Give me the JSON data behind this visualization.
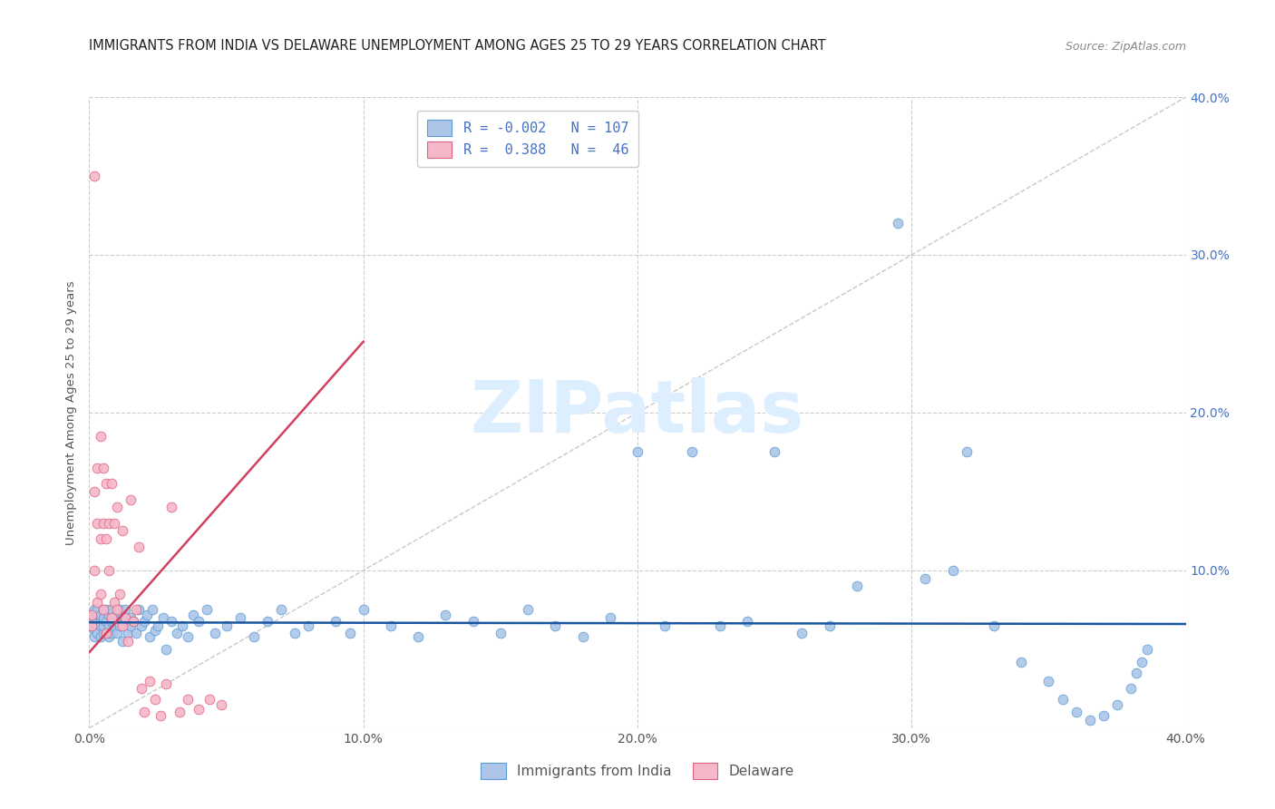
{
  "title": "IMMIGRANTS FROM INDIA VS DELAWARE UNEMPLOYMENT AMONG AGES 25 TO 29 YEARS CORRELATION CHART",
  "source": "Source: ZipAtlas.com",
  "ylabel": "Unemployment Among Ages 25 to 29 years",
  "xlim": [
    0.0,
    0.4
  ],
  "ylim": [
    0.0,
    0.4
  ],
  "xticks": [
    0.0,
    0.1,
    0.2,
    0.3,
    0.4
  ],
  "yticks": [
    0.0,
    0.1,
    0.2,
    0.3,
    0.4
  ],
  "xtick_labels": [
    "0.0%",
    "10.0%",
    "20.0%",
    "30.0%",
    "40.0%"
  ],
  "right_ytick_labels": [
    "",
    "10.0%",
    "20.0%",
    "30.0%",
    "40.0%"
  ],
  "blue_R": -0.002,
  "blue_N": 107,
  "pink_R": 0.388,
  "pink_N": 46,
  "blue_color": "#adc6e8",
  "pink_color": "#f5b8c8",
  "blue_edge": "#5b9bd5",
  "pink_edge": "#e06080",
  "blue_trend_color": "#1a56a0",
  "pink_trend_color": "#d04060",
  "diagonal_color": "#c8c8c8",
  "watermark_color": "#ddeeff",
  "legend_label_blue": "Immigrants from India",
  "legend_label_pink": "Delaware",
  "title_fontsize": 10.5,
  "axis_label_fontsize": 9.5,
  "tick_fontsize": 10,
  "blue_trend_y_at_0": 0.067,
  "blue_trend_y_at_40": 0.066,
  "pink_trend_x_start": 0.0,
  "pink_trend_y_start": 0.048,
  "pink_trend_x_end": 0.1,
  "pink_trend_y_end": 0.245,
  "blue_x": [
    0.001,
    0.001,
    0.001,
    0.002,
    0.002,
    0.002,
    0.002,
    0.003,
    0.003,
    0.003,
    0.003,
    0.003,
    0.004,
    0.004,
    0.004,
    0.004,
    0.005,
    0.005,
    0.005,
    0.005,
    0.005,
    0.006,
    0.006,
    0.006,
    0.007,
    0.007,
    0.007,
    0.008,
    0.008,
    0.008,
    0.009,
    0.009,
    0.01,
    0.01,
    0.011,
    0.011,
    0.012,
    0.012,
    0.013,
    0.013,
    0.014,
    0.015,
    0.015,
    0.016,
    0.017,
    0.018,
    0.019,
    0.02,
    0.021,
    0.022,
    0.023,
    0.024,
    0.025,
    0.027,
    0.028,
    0.03,
    0.032,
    0.034,
    0.036,
    0.038,
    0.04,
    0.043,
    0.046,
    0.05,
    0.055,
    0.06,
    0.065,
    0.07,
    0.075,
    0.08,
    0.09,
    0.095,
    0.1,
    0.11,
    0.12,
    0.13,
    0.14,
    0.15,
    0.16,
    0.17,
    0.18,
    0.19,
    0.2,
    0.21,
    0.22,
    0.23,
    0.24,
    0.25,
    0.26,
    0.27,
    0.28,
    0.295,
    0.305,
    0.315,
    0.32,
    0.33,
    0.34,
    0.35,
    0.355,
    0.36,
    0.365,
    0.37,
    0.375,
    0.38,
    0.382,
    0.384,
    0.386
  ],
  "blue_y": [
    0.068,
    0.072,
    0.065,
    0.07,
    0.062,
    0.075,
    0.058,
    0.068,
    0.072,
    0.065,
    0.06,
    0.075,
    0.07,
    0.065,
    0.058,
    0.072,
    0.068,
    0.075,
    0.06,
    0.065,
    0.07,
    0.068,
    0.06,
    0.075,
    0.065,
    0.072,
    0.058,
    0.068,
    0.075,
    0.06,
    0.065,
    0.07,
    0.068,
    0.06,
    0.075,
    0.065,
    0.072,
    0.055,
    0.068,
    0.075,
    0.06,
    0.065,
    0.07,
    0.068,
    0.06,
    0.075,
    0.065,
    0.068,
    0.072,
    0.058,
    0.075,
    0.062,
    0.065,
    0.07,
    0.05,
    0.068,
    0.06,
    0.065,
    0.058,
    0.072,
    0.068,
    0.075,
    0.06,
    0.065,
    0.07,
    0.058,
    0.068,
    0.075,
    0.06,
    0.065,
    0.068,
    0.06,
    0.075,
    0.065,
    0.058,
    0.072,
    0.068,
    0.06,
    0.075,
    0.065,
    0.058,
    0.07,
    0.175,
    0.065,
    0.175,
    0.065,
    0.068,
    0.175,
    0.06,
    0.065,
    0.09,
    0.32,
    0.095,
    0.1,
    0.175,
    0.065,
    0.042,
    0.03,
    0.018,
    0.01,
    0.005,
    0.008,
    0.015,
    0.025,
    0.035,
    0.042,
    0.05
  ],
  "pink_x": [
    0.001,
    0.001,
    0.002,
    0.002,
    0.002,
    0.003,
    0.003,
    0.003,
    0.004,
    0.004,
    0.004,
    0.005,
    0.005,
    0.005,
    0.006,
    0.006,
    0.006,
    0.007,
    0.007,
    0.008,
    0.008,
    0.009,
    0.009,
    0.01,
    0.01,
    0.011,
    0.012,
    0.012,
    0.013,
    0.014,
    0.015,
    0.016,
    0.017,
    0.018,
    0.019,
    0.02,
    0.022,
    0.024,
    0.026,
    0.028,
    0.03,
    0.033,
    0.036,
    0.04,
    0.044,
    0.048
  ],
  "pink_y": [
    0.065,
    0.072,
    0.1,
    0.15,
    0.35,
    0.08,
    0.13,
    0.165,
    0.085,
    0.12,
    0.185,
    0.075,
    0.13,
    0.165,
    0.06,
    0.12,
    0.155,
    0.1,
    0.13,
    0.07,
    0.155,
    0.08,
    0.13,
    0.075,
    0.14,
    0.085,
    0.065,
    0.125,
    0.07,
    0.055,
    0.145,
    0.068,
    0.075,
    0.115,
    0.025,
    0.01,
    0.03,
    0.018,
    0.008,
    0.028,
    0.14,
    0.01,
    0.018,
    0.012,
    0.018,
    0.015
  ]
}
